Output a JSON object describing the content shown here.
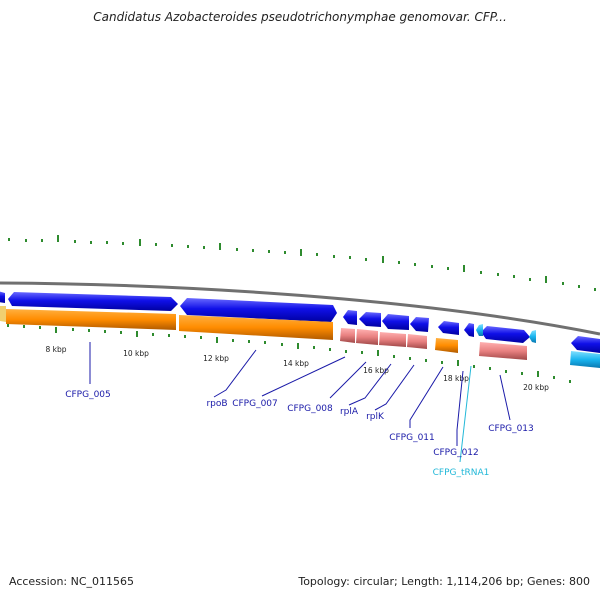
{
  "title": "Candidatus Azobacteroides pseudotrichonymphae genomovar. CFP...",
  "footer": {
    "accession": "Accession: NC_011565",
    "summary": "Topology: circular; Length: 1,114,206 bp; Genes: 800"
  },
  "scale_labels": [
    "8 kbp",
    "10 kbp",
    "12 kbp",
    "14 kbp",
    "16 kbp",
    "18 kbp",
    "20 kbp"
  ],
  "gene_labels": [
    {
      "text": "CFPG_005",
      "kind": "gene"
    },
    {
      "text": "rpoB",
      "kind": "gene"
    },
    {
      "text": "CFPG_007",
      "kind": "gene"
    },
    {
      "text": "CFPG_008",
      "kind": "gene"
    },
    {
      "text": "rplA",
      "kind": "gene"
    },
    {
      "text": "rplK",
      "kind": "gene"
    },
    {
      "text": "CFPG_011",
      "kind": "gene"
    },
    {
      "text": "CFPG_012",
      "kind": "gene"
    },
    {
      "text": "CFPG_tRNA1",
      "kind": "trna"
    },
    {
      "text": "CFPG_013",
      "kind": "gene"
    }
  ],
  "colors": {
    "gene_blue": "#1010e0",
    "cds_orange": "#ff8c00",
    "rrna_salmon": "#e88080",
    "trna_cyan": "#19b5f0",
    "tick_green": "#2e8b2e",
    "backbone_gray": "#707070",
    "label_blue": "#1a1aa8",
    "label_cyan": "#22b8d8"
  }
}
